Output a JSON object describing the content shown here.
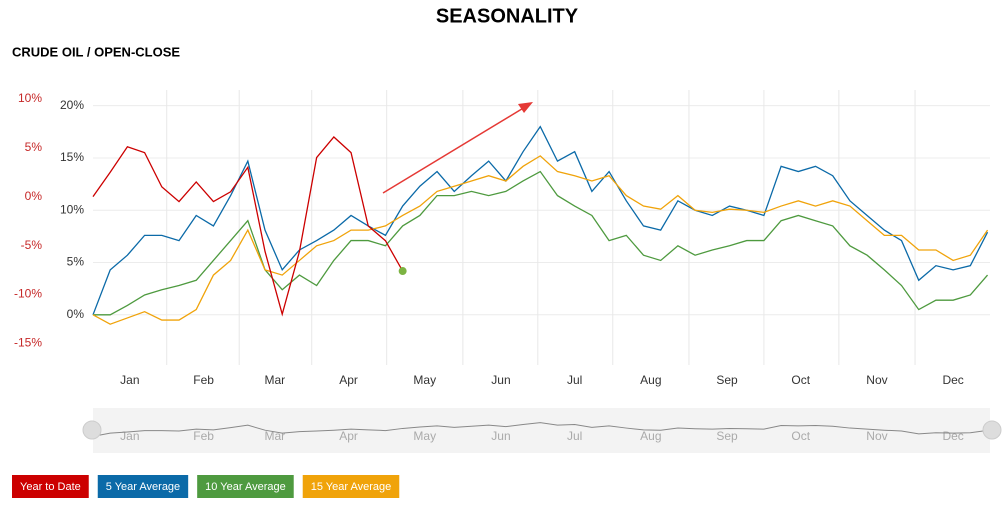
{
  "chart_data": {
    "type": "line",
    "title": "SEASONALITY",
    "subtitle": "CRUDE OIL / OPEN-CLOSE",
    "x": [
      0,
      7,
      14,
      21,
      28,
      35,
      42,
      49,
      56,
      63,
      70,
      77,
      84,
      91,
      98,
      105,
      112,
      119,
      126,
      133,
      140,
      147,
      154,
      161,
      168,
      175,
      182,
      189,
      196,
      203,
      210,
      217,
      224,
      231,
      238,
      245,
      252,
      259,
      266,
      273,
      280,
      287,
      294,
      301,
      308,
      315,
      322,
      329,
      336,
      343,
      350,
      357,
      364
    ],
    "xlim": [
      0,
      365
    ],
    "xticks": [
      {
        "value": 15,
        "label": "Jan"
      },
      {
        "value": 45,
        "label": "Feb"
      },
      {
        "value": 74,
        "label": "Mar"
      },
      {
        "value": 104,
        "label": "Apr"
      },
      {
        "value": 135,
        "label": "May"
      },
      {
        "value": 166,
        "label": "Jun"
      },
      {
        "value": 196,
        "label": "Jul"
      },
      {
        "value": 227,
        "label": "Aug"
      },
      {
        "value": 258,
        "label": "Sep"
      },
      {
        "value": 288,
        "label": "Oct"
      },
      {
        "value": 319,
        "label": "Nov"
      },
      {
        "value": 350,
        "label": "Dec"
      }
    ],
    "ylim": [
      -4.8,
      21.5
    ],
    "yticks": [
      {
        "value": 0,
        "label": "0%"
      },
      {
        "value": 5,
        "label": "5%"
      },
      {
        "value": 10,
        "label": "10%"
      },
      {
        "value": 15,
        "label": "15%"
      },
      {
        "value": 20,
        "label": "20%"
      }
    ],
    "y2lim": [
      -17.2,
      10.9
    ],
    "y2ticks": [
      {
        "value": -15,
        "label": "-15%"
      },
      {
        "value": -10,
        "label": "-10%"
      },
      {
        "value": -5,
        "label": "-5%"
      },
      {
        "value": 0,
        "label": "0%"
      },
      {
        "value": 5,
        "label": "5%"
      },
      {
        "value": 10,
        "label": "10%"
      }
    ],
    "grid": true,
    "series": [
      {
        "name": "Year to Date",
        "color": "#cc0000",
        "axis": "y2",
        "values": [
          0,
          2.5,
          5.1,
          4.5,
          1,
          -0.5,
          1.5,
          -0.5,
          0.5,
          3,
          -5.6,
          -12,
          -5.6,
          4,
          6.1,
          4.5,
          -3,
          -4.5,
          -7.6,
          null,
          null,
          null,
          null,
          null,
          null,
          null,
          null,
          null,
          null,
          null,
          null,
          null,
          null,
          null,
          null,
          null,
          null,
          null,
          null,
          null,
          null,
          null,
          null,
          null,
          null,
          null,
          null,
          null,
          null,
          null,
          null,
          null,
          null
        ]
      },
      {
        "name": "5 Year Average",
        "color": "#0b6aa8",
        "values": [
          0,
          4.3,
          5.7,
          7.6,
          7.6,
          7.1,
          9.5,
          8.5,
          11.4,
          14.7,
          8.1,
          4.3,
          6.2,
          7.1,
          8.1,
          9.5,
          8.5,
          7.6,
          10.4,
          12.3,
          13.7,
          11.8,
          13.3,
          14.7,
          12.8,
          15.6,
          18,
          14.7,
          15.6,
          11.8,
          13.7,
          10.9,
          8.5,
          8.1,
          10.9,
          10,
          9.5,
          10.4,
          10,
          9.5,
          14.2,
          13.7,
          14.2,
          13.3,
          10.9,
          9.5,
          8.1,
          7.1,
          3.3,
          4.7,
          4.3,
          4.7,
          7.9
        ]
      },
      {
        "name": "10 Year Average",
        "color": "#4e9a3f",
        "values": [
          0,
          0,
          0.9,
          1.9,
          2.4,
          2.8,
          3.3,
          5.2,
          7.1,
          9,
          4.3,
          2.4,
          3.8,
          2.8,
          5.2,
          7.1,
          7.1,
          6.6,
          8.5,
          9.5,
          11.4,
          11.4,
          11.8,
          11.4,
          11.8,
          12.8,
          13.7,
          11.4,
          10.4,
          9.5,
          7.1,
          7.6,
          5.7,
          5.2,
          6.6,
          5.7,
          6.2,
          6.6,
          7.1,
          7.1,
          9,
          9.5,
          9,
          8.5,
          6.6,
          5.7,
          4.3,
          2.8,
          0.5,
          1.4,
          1.4,
          1.9,
          3.8
        ]
      },
      {
        "name": "15 Year Average",
        "color": "#f0a30a",
        "values": [
          0,
          -0.9,
          -0.3,
          0.3,
          -0.5,
          -0.5,
          0.5,
          3.8,
          5.2,
          8.1,
          4.3,
          3.8,
          5.2,
          6.6,
          7.1,
          8.1,
          8.1,
          8.5,
          9.5,
          10.4,
          11.8,
          12.3,
          12.8,
          13.3,
          12.8,
          14.2,
          15.2,
          13.7,
          13.3,
          12.8,
          13.3,
          11.4,
          10.4,
          10.1,
          11.4,
          10,
          9.8,
          10.1,
          10,
          9.8,
          10.4,
          10.9,
          10.4,
          10.9,
          10.4,
          9,
          7.6,
          7.6,
          6.2,
          6.2,
          5.2,
          5.7,
          8.1
        ]
      }
    ]
  }
}
